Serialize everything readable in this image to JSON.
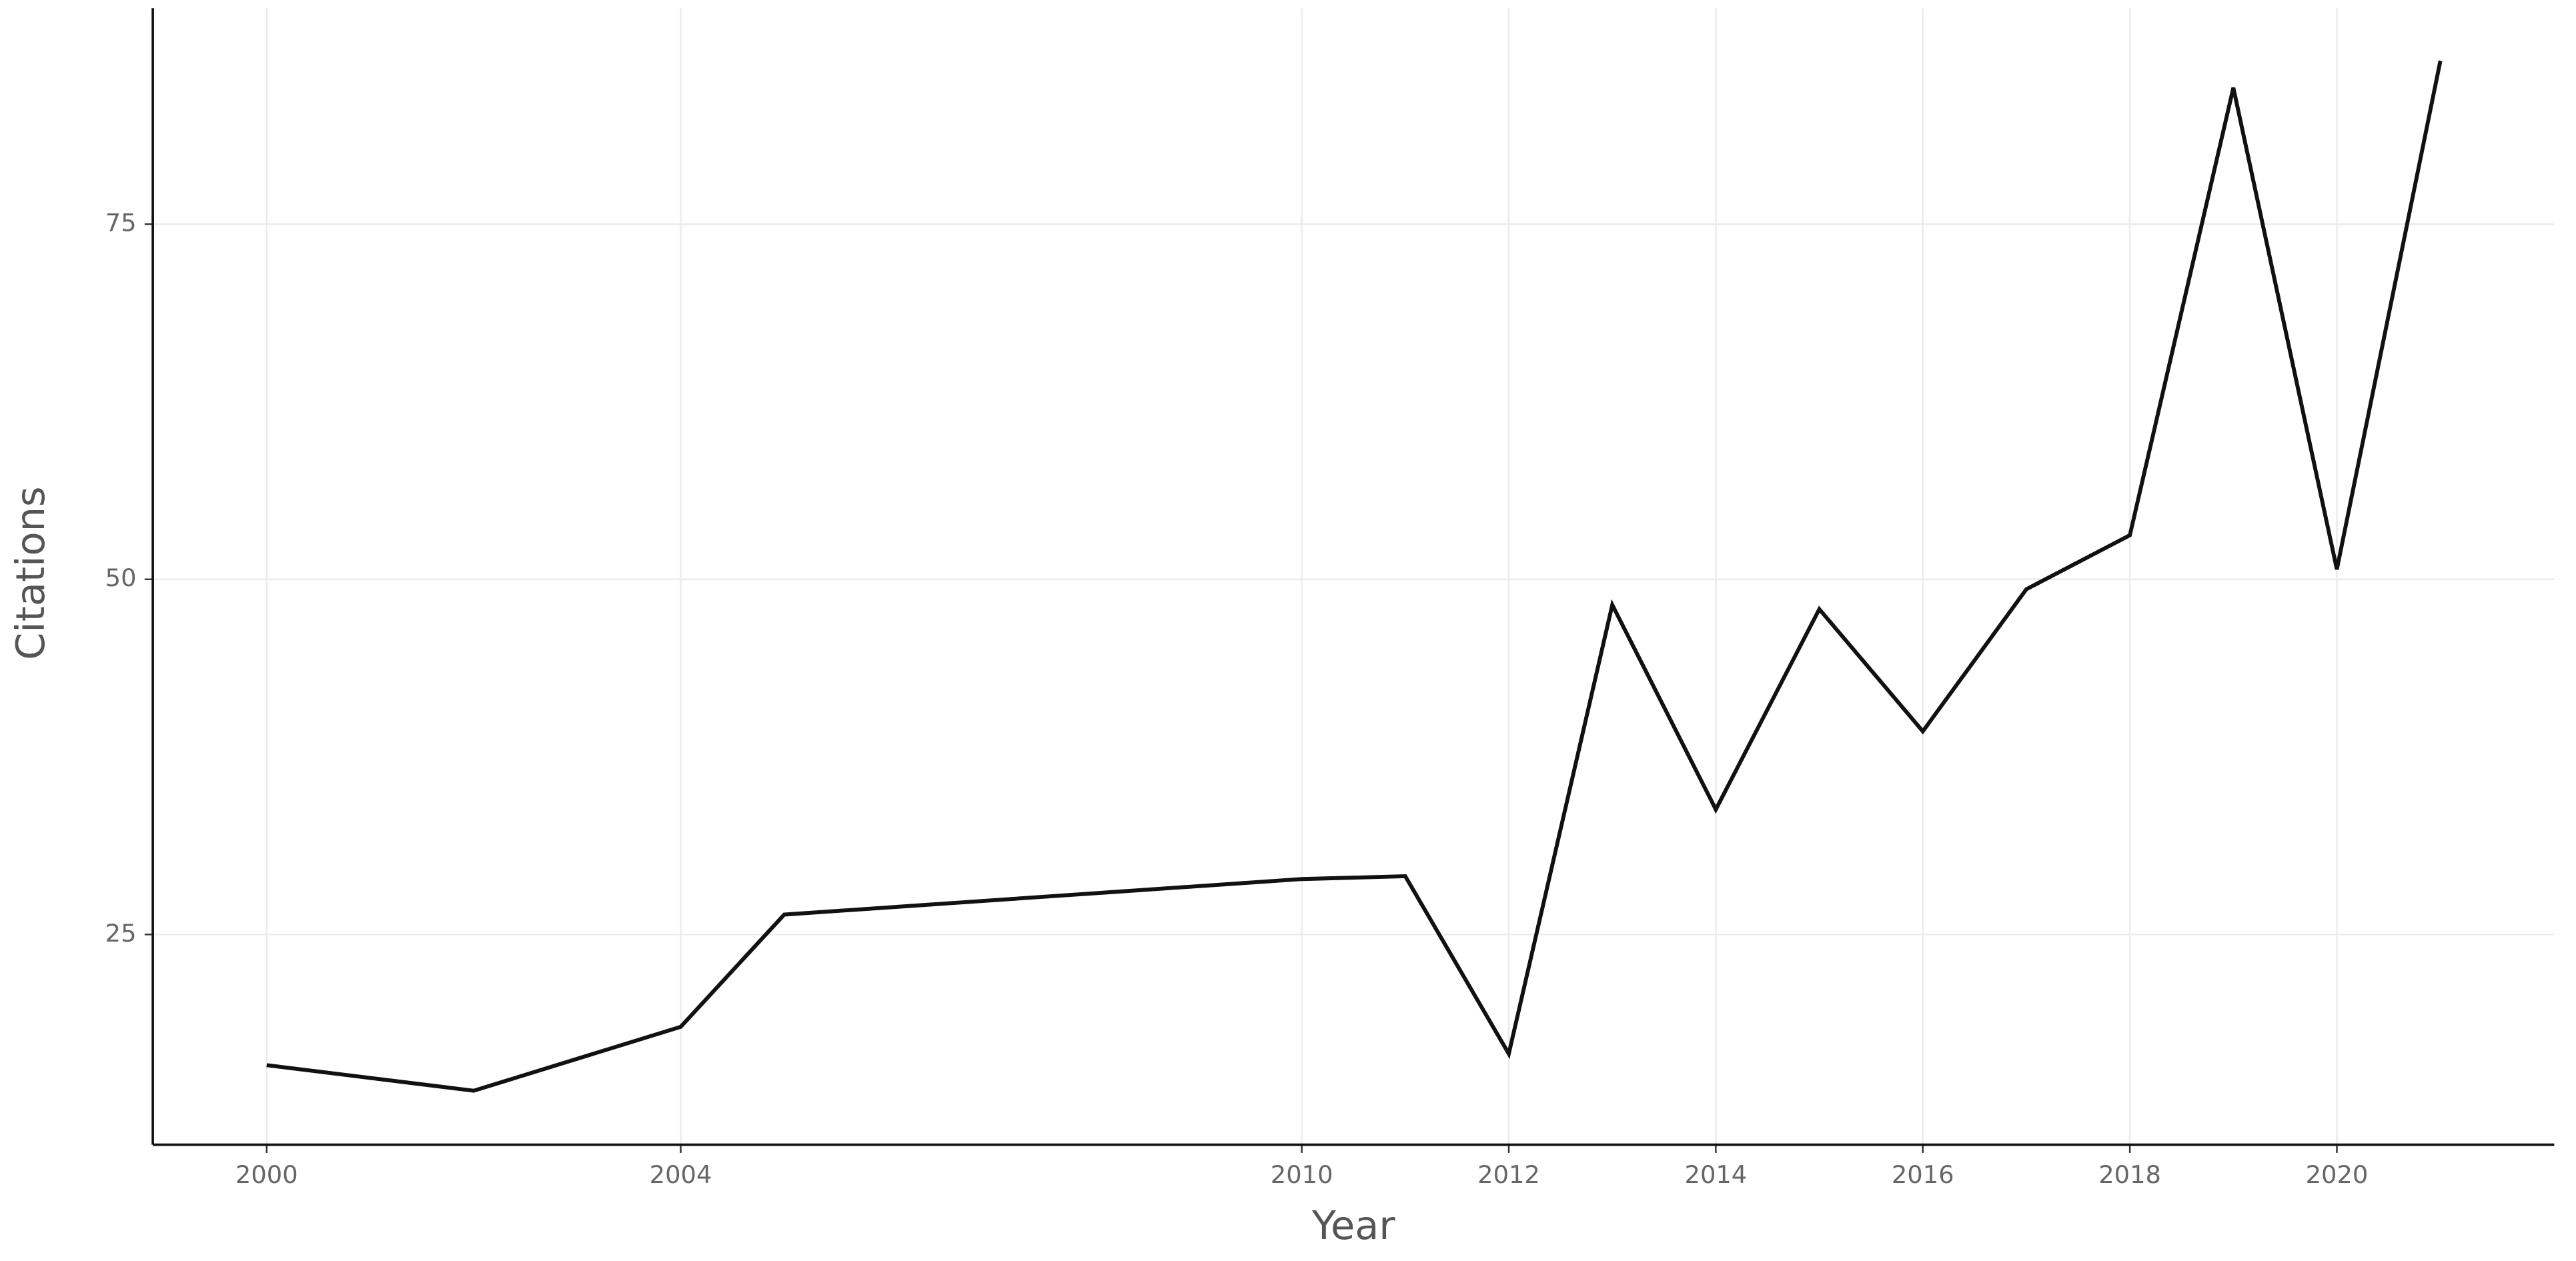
{
  "chart_data": {
    "type": "line",
    "x_label": "Year",
    "y_label": "Citations",
    "x": [
      2000,
      2002,
      2004,
      2005,
      2010,
      2011,
      2012,
      2013,
      2014,
      2015,
      2016,
      2017,
      2018,
      2019,
      2020,
      2021
    ],
    "series": [
      {
        "color": "#111111",
        "values": [
          15.8,
          14.0,
          18.5,
          26.4,
          28.9,
          29.1,
          16.6,
          48.2,
          33.8,
          47.9,
          39.3,
          49.3,
          53.1,
          84.6,
          50.7,
          86.5
        ]
      }
    ],
    "xlim": [
      1998.9,
      2022.1
    ],
    "xticks": [
      2000,
      2004,
      2010,
      2012,
      2014,
      2016,
      2018,
      2020
    ],
    "ylim": [
      10.2,
      90.2
    ],
    "yticks": [
      25,
      50,
      75
    ],
    "grid": true
  }
}
